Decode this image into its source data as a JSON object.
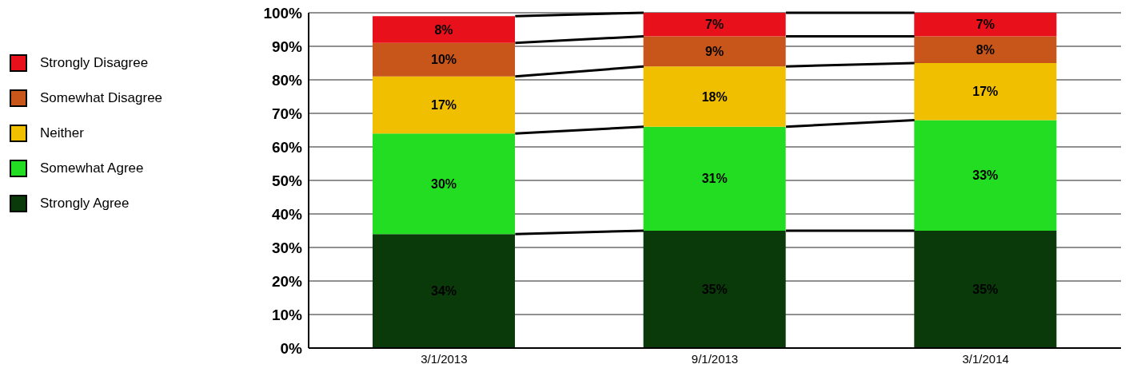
{
  "chart_data": {
    "type": "bar",
    "stacked": true,
    "categories": [
      "3/1/2013",
      "9/1/2013",
      "3/1/2014"
    ],
    "series": [
      {
        "name": "Strongly Agree",
        "color": "#0a3a0a",
        "values": [
          34,
          35,
          35
        ],
        "value_labels": [
          "34%",
          "35%",
          "35%"
        ]
      },
      {
        "name": "Somewhat Agree",
        "color": "#22dd22",
        "values": [
          30,
          31,
          33
        ],
        "value_labels": [
          "30%",
          "31%",
          "33%"
        ]
      },
      {
        "name": "Neither",
        "color": "#f0c000",
        "values": [
          17,
          18,
          17
        ],
        "value_labels": [
          "17%",
          "18%",
          "17%"
        ]
      },
      {
        "name": "Somewhat Disagree",
        "color": "#c8561a",
        "values": [
          10,
          9,
          8
        ],
        "value_labels": [
          "10%",
          "9%",
          "8%"
        ]
      },
      {
        "name": "Strongly Disagree",
        "color": "#e8101a",
        "values": [
          8,
          7,
          7
        ],
        "value_labels": [
          "8%",
          "7%",
          "7%"
        ]
      }
    ],
    "ylim": [
      0,
      100
    ],
    "yticks": [
      {
        "value": 0,
        "label": "0%"
      },
      {
        "value": 10,
        "label": "10%"
      },
      {
        "value": 20,
        "label": "20%"
      },
      {
        "value": 30,
        "label": "30%"
      },
      {
        "value": 40,
        "label": "40%"
      },
      {
        "value": 50,
        "label": "50%"
      },
      {
        "value": 60,
        "label": "60%"
      },
      {
        "value": 70,
        "label": "70%"
      },
      {
        "value": 80,
        "label": "80%"
      },
      {
        "value": 90,
        "label": "90%"
      },
      {
        "value": 100,
        "label": "100%"
      }
    ],
    "grid": "y",
    "legend": "left"
  }
}
